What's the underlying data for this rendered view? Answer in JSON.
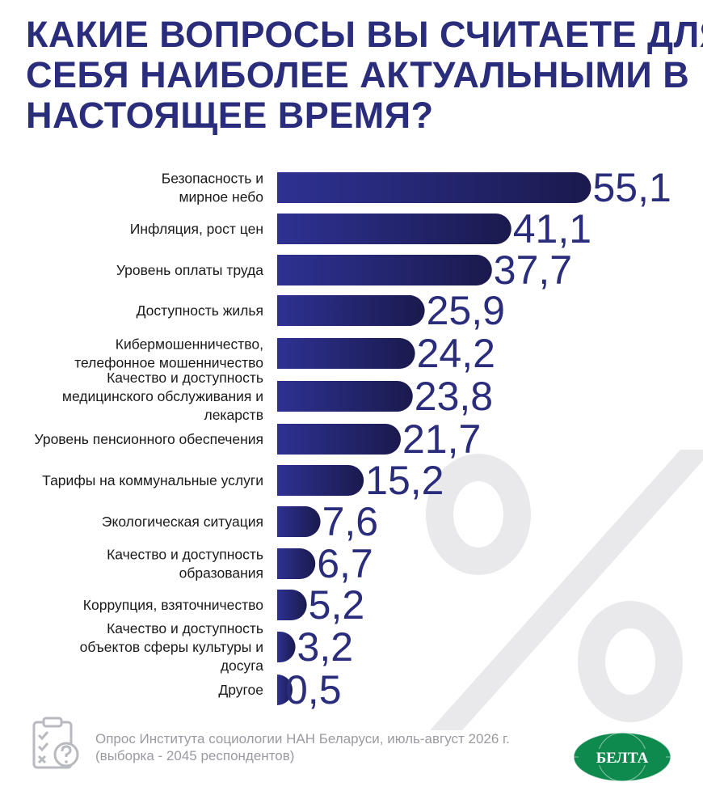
{
  "title_lines": [
    "КАКИЕ ВОПРОСЫ ВЫ СЧИТАЕТЕ ДЛЯ",
    "СЕБЯ НАИБОЛЕЕ АКТУАЛЬНЫМИ В",
    "НАСТОЯЩЕЕ ВРЕМЯ?"
  ],
  "chart_data": {
    "type": "bar",
    "orientation": "horizontal",
    "categories": [
      [
        "Безопасность и",
        "мирное небо"
      ],
      [
        "Инфляция, рост цен"
      ],
      [
        "Уровень оплаты труда"
      ],
      [
        "Доступность жилья"
      ],
      [
        "Кибермошенничество,",
        "телефонное мошенничество"
      ],
      [
        "Качество и доступность",
        "медицинского обслуживания и",
        "лекарств"
      ],
      [
        "Уровень пенсионного обеспечения"
      ],
      [
        "Тарифы на коммунальные услуги"
      ],
      [
        "Экологическая ситуация"
      ],
      [
        "Качество и доступность",
        "образования"
      ],
      [
        "Коррупция, взяточничество"
      ],
      [
        "Качество и доступность",
        "объектов сферы культуры и",
        "досуга"
      ],
      [
        "Другое"
      ]
    ],
    "values": [
      55.1,
      41.1,
      37.7,
      25.9,
      24.2,
      23.8,
      21.7,
      15.2,
      7.6,
      6.7,
      5.2,
      3.2,
      0.5
    ],
    "value_labels": [
      "55,1",
      "41,1",
      "37,7",
      "25,9",
      "24,2",
      "23,8",
      "21,7",
      "15,2",
      "7,6",
      "6,7",
      "5,2",
      "3,2",
      "0,5"
    ],
    "unit_symbol": "%",
    "colors": {
      "bar_start": "#2e3192",
      "bar_end": "#1a1a4e",
      "label": "#2a2c7c",
      "text": "#1a1a1a"
    }
  },
  "footer": {
    "note_lines": [
      "Опрос Института социологии НАН Беларуси, июль-август 2026 г.",
      "(выборка - 2045 респондентов)"
    ],
    "logo_text": "БЕЛТА"
  },
  "icons": {
    "survey": "clipboard-question-icon",
    "logo": "belta-globe-logo"
  },
  "colors": {
    "title": "#2a2c7c",
    "note": "#9a9ba2",
    "watermark": "#e9e9ec",
    "logo_green": "#0f8a4f"
  }
}
